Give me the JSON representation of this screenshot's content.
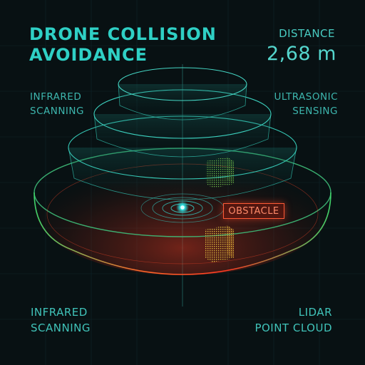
{
  "header": {
    "title_line1": "DRONE COLLISION",
    "title_line2": "AVOIDANCE"
  },
  "distance": {
    "label": "DISTANCE",
    "value": "2,68 m"
  },
  "sensors": {
    "top_left": [
      "INFRARED",
      "SCANNING"
    ],
    "top_right": [
      "ULTRASONIC",
      "SENSING"
    ],
    "bottom_left": [
      "INFRARED",
      "SCANNING"
    ],
    "bottom_right": [
      "LIDAR",
      "POINT CLOUD"
    ]
  },
  "obstacle": {
    "label": "OBSTACLE"
  },
  "colors": {
    "background": "#081113",
    "accent": "#40c9bf",
    "warning": "#ff5a36",
    "point_cloud": "#e0c040"
  }
}
